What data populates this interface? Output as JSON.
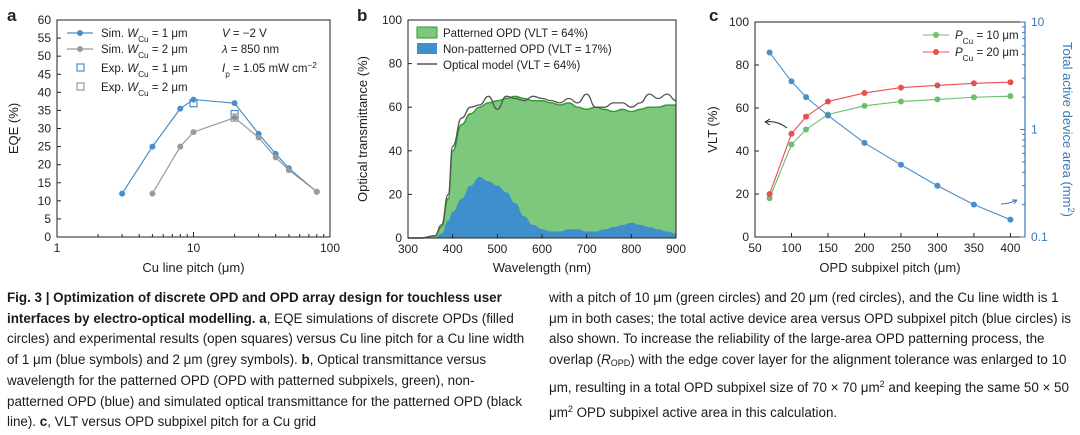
{
  "figure": {
    "panel_a_label": "a",
    "panel_b_label": "b",
    "panel_c_label": "c",
    "caption_heading": "Fig. 3 | Optimization of discrete OPD and OPD array design for touchless user interfaces by electro-optical modelling.",
    "caption_left_rest_1": " a",
    "caption_left_rest_2": ", EQE simulations of discrete OPDs (filled circles) and experimental results (open squares) versus Cu line pitch for a Cu line width of 1 μm (blue symbols) and 2 μm (grey symbols). ",
    "caption_left_b": "b",
    "caption_left_rest_3": ", Optical transmittance versus wavelength for the patterned OPD (OPD with patterned subpixels, green), non-patterned OPD (blue) and simulated optical transmittance for the patterned OPD (black line). ",
    "caption_left_c": "c",
    "caption_left_rest_4": ", VLT versus OPD subpixel pitch for a Cu grid",
    "caption_right_1": "with a pitch of 10 μm (green circles) and 20 μm (red circles), and the Cu line width is 1 μm in both cases; the total active device area versus OPD subpixel pitch (blue circles) is also shown. To increase the reliability of the large-area OPD patterning process, the overlap (",
    "caption_right_r": "R",
    "caption_right_r_sub": "OPD",
    "caption_right_2": ") with the edge cover layer for the alignment tolerance was enlarged to 10 μm, resulting in a total OPD subpixel size of 70 × 70 μm",
    "caption_right_sup1": "2",
    "caption_right_3": " and keeping the same 50 × 50 μm",
    "caption_right_sup2": "2",
    "caption_right_4": " OPD subpixel active area in this calculation."
  },
  "colors": {
    "blue": "#4a8fca",
    "grey": "#9a9a9a",
    "green": "#6abf6a",
    "red": "#e8504f",
    "axis_right": "#3a78b8"
  },
  "chart_data": [
    {
      "panel": "a",
      "type": "scatter",
      "xscale": "log",
      "xlim": [
        1,
        100
      ],
      "ylim": [
        0,
        60
      ],
      "xticks": [
        1,
        10,
        100
      ],
      "yticks": [
        0,
        5,
        10,
        15,
        20,
        25,
        30,
        35,
        40,
        45,
        50,
        55,
        60
      ],
      "xlabel": "Cu line pitch (μm)",
      "ylabel": "EQE (%)",
      "annotations": [
        "V = −2 V",
        "λ = 850 nm",
        "Ip = 1.05 mW cm−2"
      ],
      "legend": [
        "Sim. WCu = 1 μm",
        "Sim. WCu = 2 μm",
        "Exp. WCu = 1 μm",
        "Exp. WCu = 2 μm"
      ],
      "series": [
        {
          "name": "Sim. WCu = 1 μm",
          "x": [
            3,
            5,
            8,
            10,
            20,
            30,
            40,
            50,
            80
          ],
          "y": [
            12,
            25,
            35.5,
            38,
            37,
            28.5,
            23,
            19,
            12.5
          ]
        },
        {
          "name": "Sim. WCu = 2 μm",
          "x": [
            5,
            8,
            10,
            20,
            30,
            40,
            50,
            80
          ],
          "y": [
            12,
            25,
            29,
            33,
            27.5,
            22,
            18.5,
            12.5
          ]
        },
        {
          "name": "Exp. WCu = 1 μm",
          "x": [
            10,
            20
          ],
          "y": [
            37,
            34
          ]
        },
        {
          "name": "Exp. WCu = 2 μm",
          "x": [
            20
          ],
          "y": [
            33
          ]
        }
      ]
    },
    {
      "panel": "b",
      "type": "area",
      "xlim": [
        300,
        900
      ],
      "ylim": [
        0,
        100
      ],
      "xticks": [
        300,
        400,
        500,
        600,
        700,
        800,
        900
      ],
      "yticks": [
        0,
        20,
        40,
        60,
        80,
        100
      ],
      "xlabel": "Wavelength (nm)",
      "ylabel": "Optical transmittance (%)",
      "legend": [
        "Patterned OPD (VLT = 64%)",
        "Non-patterned OPD (VLT = 17%)",
        "Optical model (VLT = 64%)"
      ],
      "x": [
        300,
        330,
        360,
        375,
        390,
        400,
        420,
        440,
        460,
        480,
        500,
        520,
        540,
        560,
        580,
        600,
        620,
        640,
        660,
        680,
        700,
        720,
        740,
        760,
        780,
        800,
        820,
        840,
        860,
        880,
        900
      ],
      "series": [
        {
          "name": "Patterned OPD (VLT = 64%)",
          "values": [
            0,
            0,
            1,
            5,
            18,
            40,
            52,
            57,
            60,
            62,
            63,
            64,
            65,
            64,
            63,
            63,
            62,
            61,
            62,
            60,
            59,
            60,
            59,
            58,
            59,
            58,
            59,
            60,
            60,
            61,
            61
          ]
        },
        {
          "name": "Non-patterned OPD (VLT = 17%)",
          "values": [
            0,
            0,
            0,
            2,
            8,
            12,
            18,
            24,
            28,
            26,
            24,
            21,
            16,
            10,
            6,
            4,
            3,
            3,
            4,
            4,
            3,
            3,
            4,
            5,
            6,
            7,
            6,
            5,
            4,
            3,
            2
          ]
        },
        {
          "name": "Optical model (VLT = 64%)",
          "values": [
            0,
            0,
            1,
            6,
            20,
            42,
            55,
            60,
            61,
            65,
            59,
            65,
            64,
            63,
            65,
            64,
            63,
            62,
            64,
            62,
            66,
            60,
            60,
            62,
            62,
            60,
            62,
            66,
            64,
            66,
            63
          ]
        }
      ]
    },
    {
      "panel": "c",
      "type": "line",
      "xlim": [
        50,
        420
      ],
      "ylim": [
        0,
        100
      ],
      "xticks": [
        50,
        100,
        150,
        200,
        250,
        300,
        350,
        400
      ],
      "yticks": [
        0,
        20,
        40,
        60,
        80,
        100
      ],
      "xlabel": "OPD subpixel pitch (μm)",
      "ylabel": "VLT (%)",
      "y2label": "Total active device area (mm2)",
      "y2scale": "log",
      "y2lim": [
        0.1,
        10
      ],
      "y2ticks": [
        0.1,
        1,
        10
      ],
      "legend": [
        "PCu = 10 μm",
        "PCu = 20 μm"
      ],
      "x": [
        70,
        100,
        120,
        150,
        200,
        250,
        300,
        350,
        400
      ],
      "series": [
        {
          "name": "PCu = 10 μm",
          "axis": "left",
          "values": [
            18,
            43,
            50,
            57,
            61,
            63,
            64,
            65,
            65.5
          ]
        },
        {
          "name": "PCu = 20 μm",
          "axis": "left",
          "values": [
            20,
            48,
            56,
            63,
            67,
            69.5,
            70.5,
            71.5,
            72
          ]
        },
        {
          "name": "Total active device area",
          "axis": "right",
          "values": [
            5.2,
            2.8,
            2.0,
            1.35,
            0.75,
            0.47,
            0.3,
            0.2,
            0.145
          ]
        }
      ]
    }
  ]
}
